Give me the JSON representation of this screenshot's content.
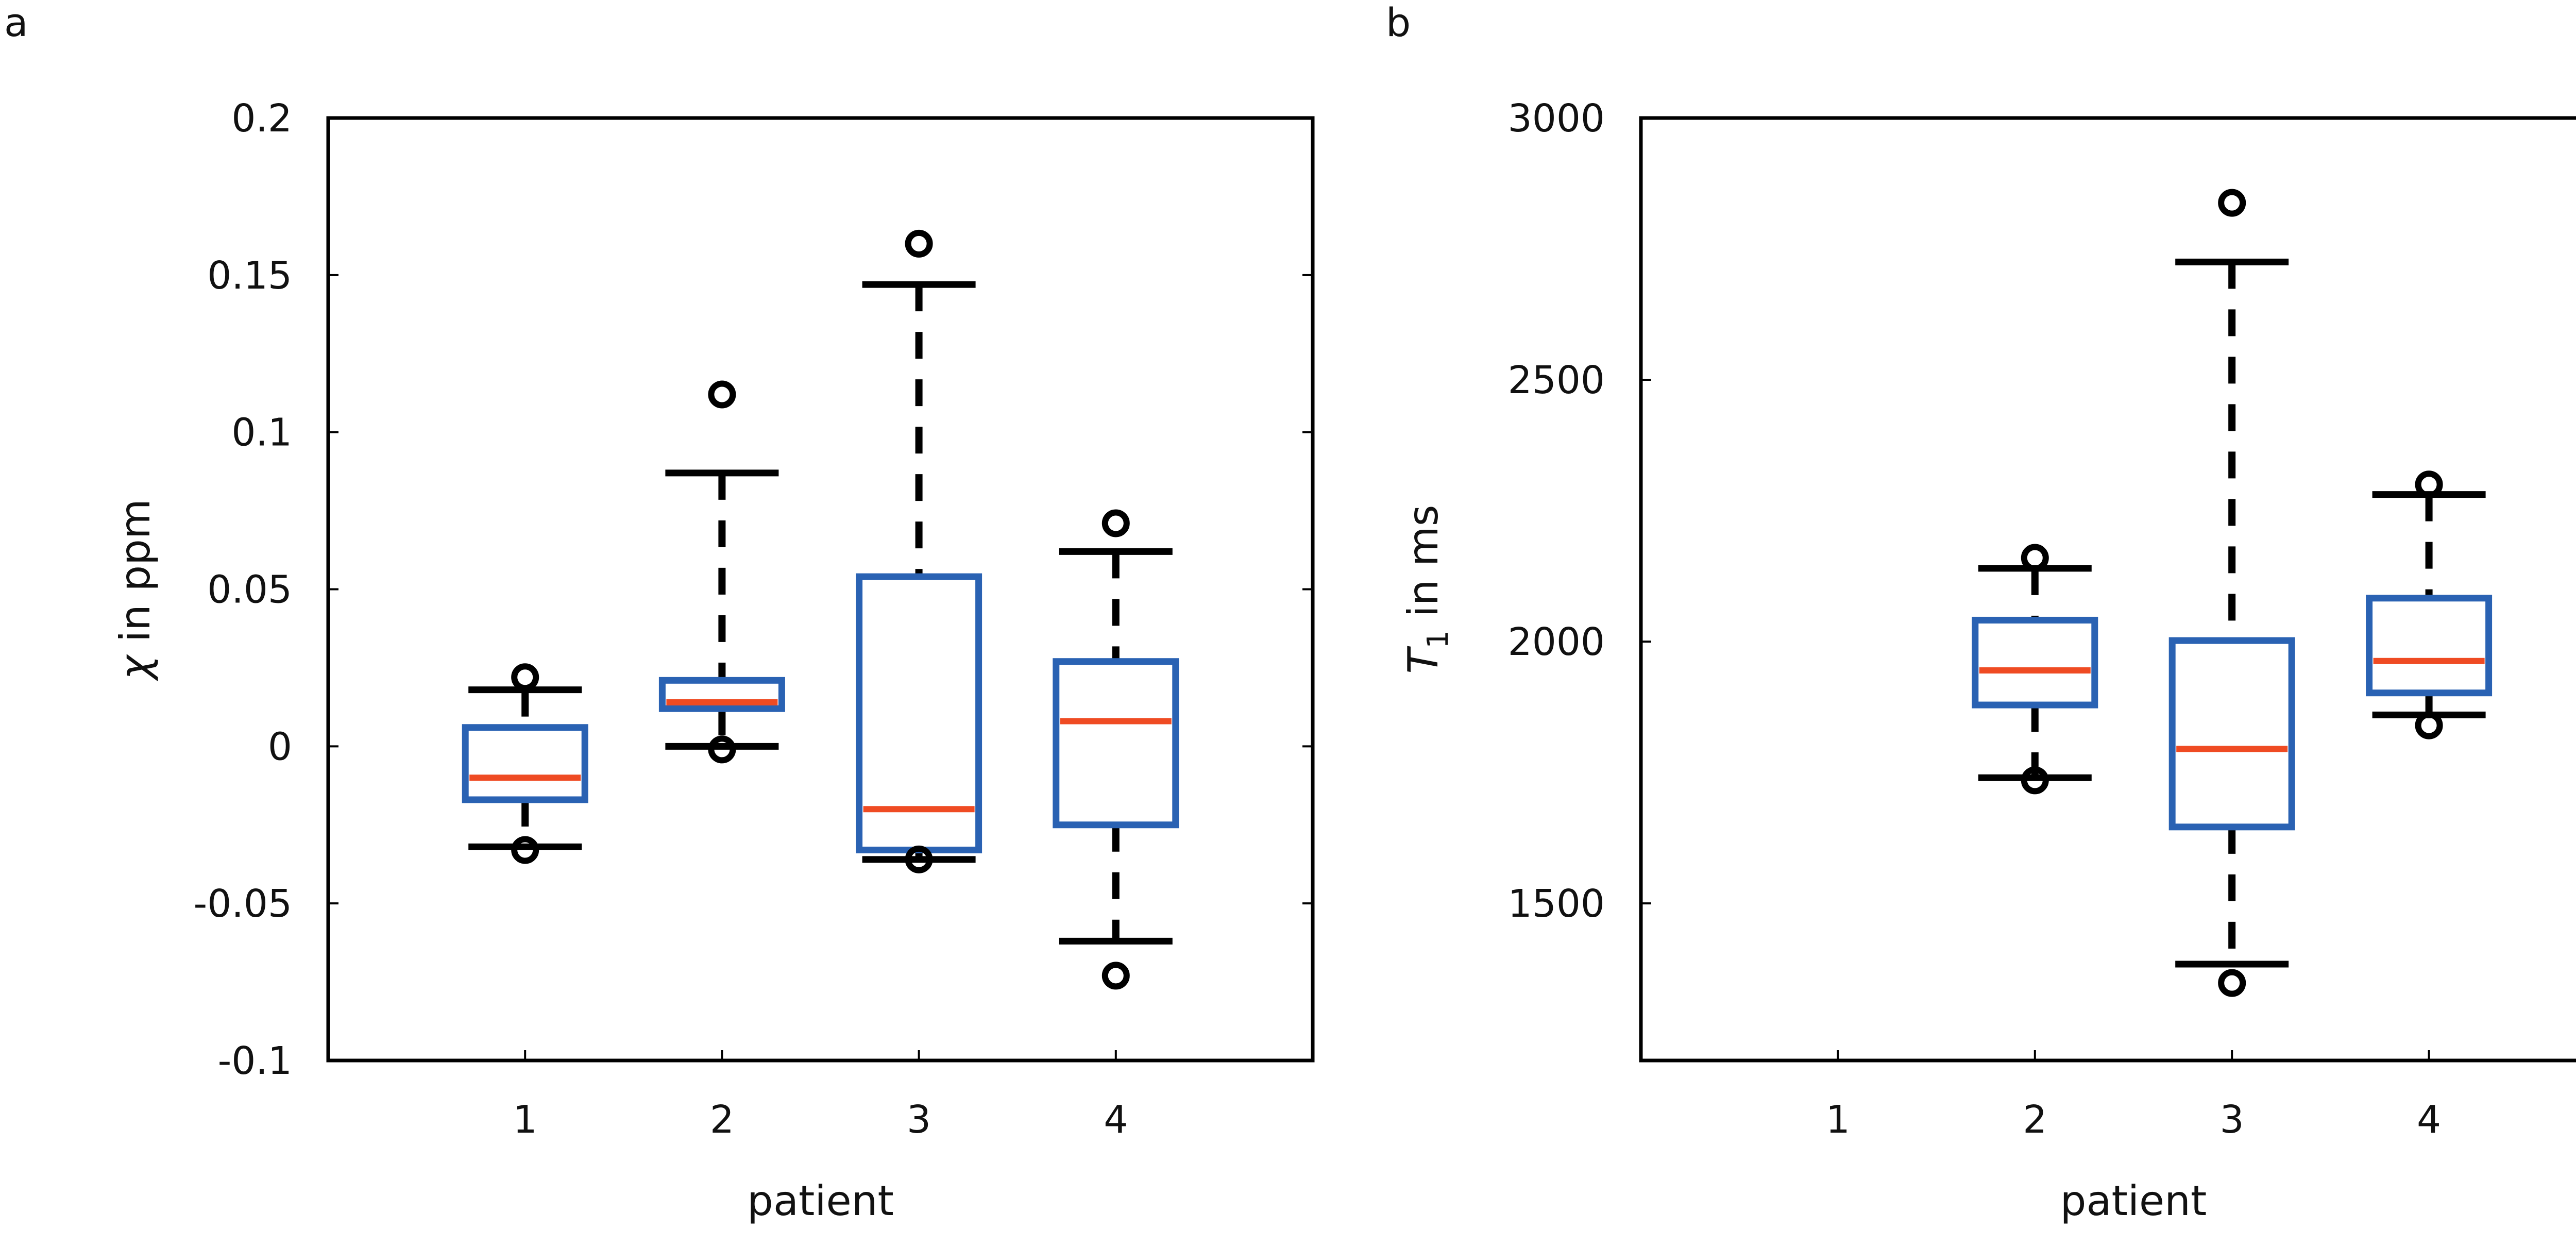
{
  "colors": {
    "box": "#2a62b3",
    "median": "#ef4b23",
    "whisker": "#000000",
    "outlier": "#000000"
  },
  "chart_data": [
    {
      "type": "box",
      "panel_label": "a",
      "xlabel": "patient",
      "ylabel_symbol": "χ",
      "ylabel_text": " in ppm",
      "xlim": [
        0,
        5
      ],
      "ylim": [
        -0.1,
        0.2
      ],
      "xticks": [
        "1",
        "2",
        "3",
        "4"
      ],
      "yticks": [
        -0.1,
        -0.05,
        0,
        0.05,
        0.1,
        0.15,
        0.2
      ],
      "ytick_labels": [
        "-0.1",
        "-0.05",
        "0",
        "0.05",
        "0.1",
        "0.15",
        "0.2"
      ],
      "boxes": [
        {
          "patient": "1",
          "whisker_low": -0.032,
          "q1": -0.017,
          "median": -0.01,
          "q3": 0.006,
          "whisker_high": 0.018,
          "outliers": [
            -0.033,
            0.022
          ]
        },
        {
          "patient": "2",
          "whisker_low": 0.0,
          "q1": 0.012,
          "median": 0.014,
          "q3": 0.021,
          "whisker_high": 0.087,
          "outliers": [
            -0.001,
            0.112
          ]
        },
        {
          "patient": "3",
          "whisker_low": -0.036,
          "q1": -0.033,
          "median": -0.02,
          "q3": 0.054,
          "whisker_high": 0.147,
          "outliers": [
            -0.036,
            0.16
          ]
        },
        {
          "patient": "4",
          "whisker_low": -0.062,
          "q1": -0.025,
          "median": 0.008,
          "q3": 0.027,
          "whisker_high": 0.062,
          "outliers": [
            -0.073,
            0.071
          ]
        }
      ]
    },
    {
      "type": "box",
      "panel_label": "b",
      "xlabel": "patient",
      "ylabel_symbol": "T",
      "ylabel_sub": "1",
      "ylabel_text": " in ms",
      "xlim": [
        0,
        5
      ],
      "ylim": [
        1200,
        3000
      ],
      "xticks": [
        "1",
        "2",
        "3",
        "4"
      ],
      "yticks": [
        1500,
        2000,
        2500,
        3000
      ],
      "ytick_labels": [
        "1500",
        "2000",
        "2500",
        "3000"
      ],
      "boxes": [
        {
          "patient": "2",
          "whisker_low": 1740,
          "q1": 1879,
          "median": 1945,
          "q3": 2041,
          "whisker_high": 2140,
          "outliers": [
            1735,
            2160
          ]
        },
        {
          "patient": "3",
          "whisker_low": 1384,
          "q1": 1646,
          "median": 1795,
          "q3": 2002,
          "whisker_high": 2725,
          "outliers": [
            1348,
            2838
          ]
        },
        {
          "patient": "4",
          "whisker_low": 1860,
          "q1": 1902,
          "median": 1963,
          "q3": 2083,
          "whisker_high": 2281,
          "outliers": [
            1840,
            2300
          ]
        }
      ]
    }
  ]
}
